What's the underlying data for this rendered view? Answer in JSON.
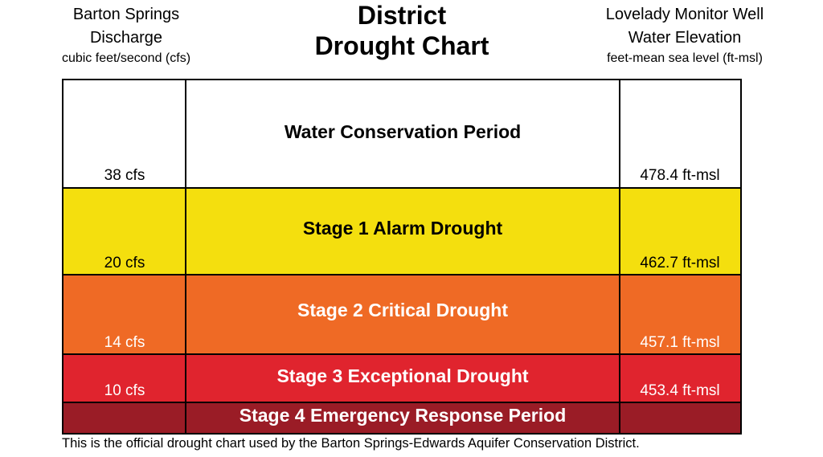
{
  "header": {
    "left": {
      "line1": "Barton Springs",
      "line2": "Discharge",
      "line3": "cubic feet/second (cfs)"
    },
    "center": {
      "line1": "District",
      "line2": "Drought Chart"
    },
    "right": {
      "line1": "Lovelady Monitor Well",
      "line2": "Water Elevation",
      "line3": "feet-mean sea level (ft-msl)"
    }
  },
  "chart_data": {
    "type": "table",
    "title": "District Drought Chart",
    "columns": [
      "Barton Springs Discharge cubic feet/second (cfs)",
      "",
      "Lovelady Monitor Well Water Elevation feet-mean sea level (ft-msl)"
    ],
    "rows": [
      {
        "stage": "Water Conservation Period",
        "cfs": "38 cfs",
        "elevation": "478.4 ft-msl",
        "color": "#ffffff",
        "text_color": "#000000",
        "cfs_color": "#000000"
      },
      {
        "stage": "Stage 1 Alarm Drought",
        "cfs": "20 cfs",
        "elevation": "462.7 ft-msl",
        "color": "#f4df0e",
        "text_color": "#000000",
        "cfs_color": "#000000"
      },
      {
        "stage": "Stage 2 Critical Drought",
        "cfs": "14 cfs",
        "elevation": "457.1 ft-msl",
        "color": "#ef6a25",
        "text_color": "#ffffff",
        "cfs_color": "#ffffff"
      },
      {
        "stage": "Stage 3 Exceptional Drought",
        "cfs": "10 cfs",
        "elevation": "453.4 ft-msl",
        "color": "#e0242e",
        "text_color": "#ffffff",
        "cfs_color": "#ffffff"
      },
      {
        "stage": "Stage 4 Emergency Response Period",
        "cfs": "",
        "elevation": "",
        "color": "#9a1c26",
        "text_color": "#ffffff",
        "cfs_color": "#ffffff"
      }
    ]
  },
  "footnote": "This is the official drought chart used by the Barton Springs-Edwards Aquifer Conservation District."
}
